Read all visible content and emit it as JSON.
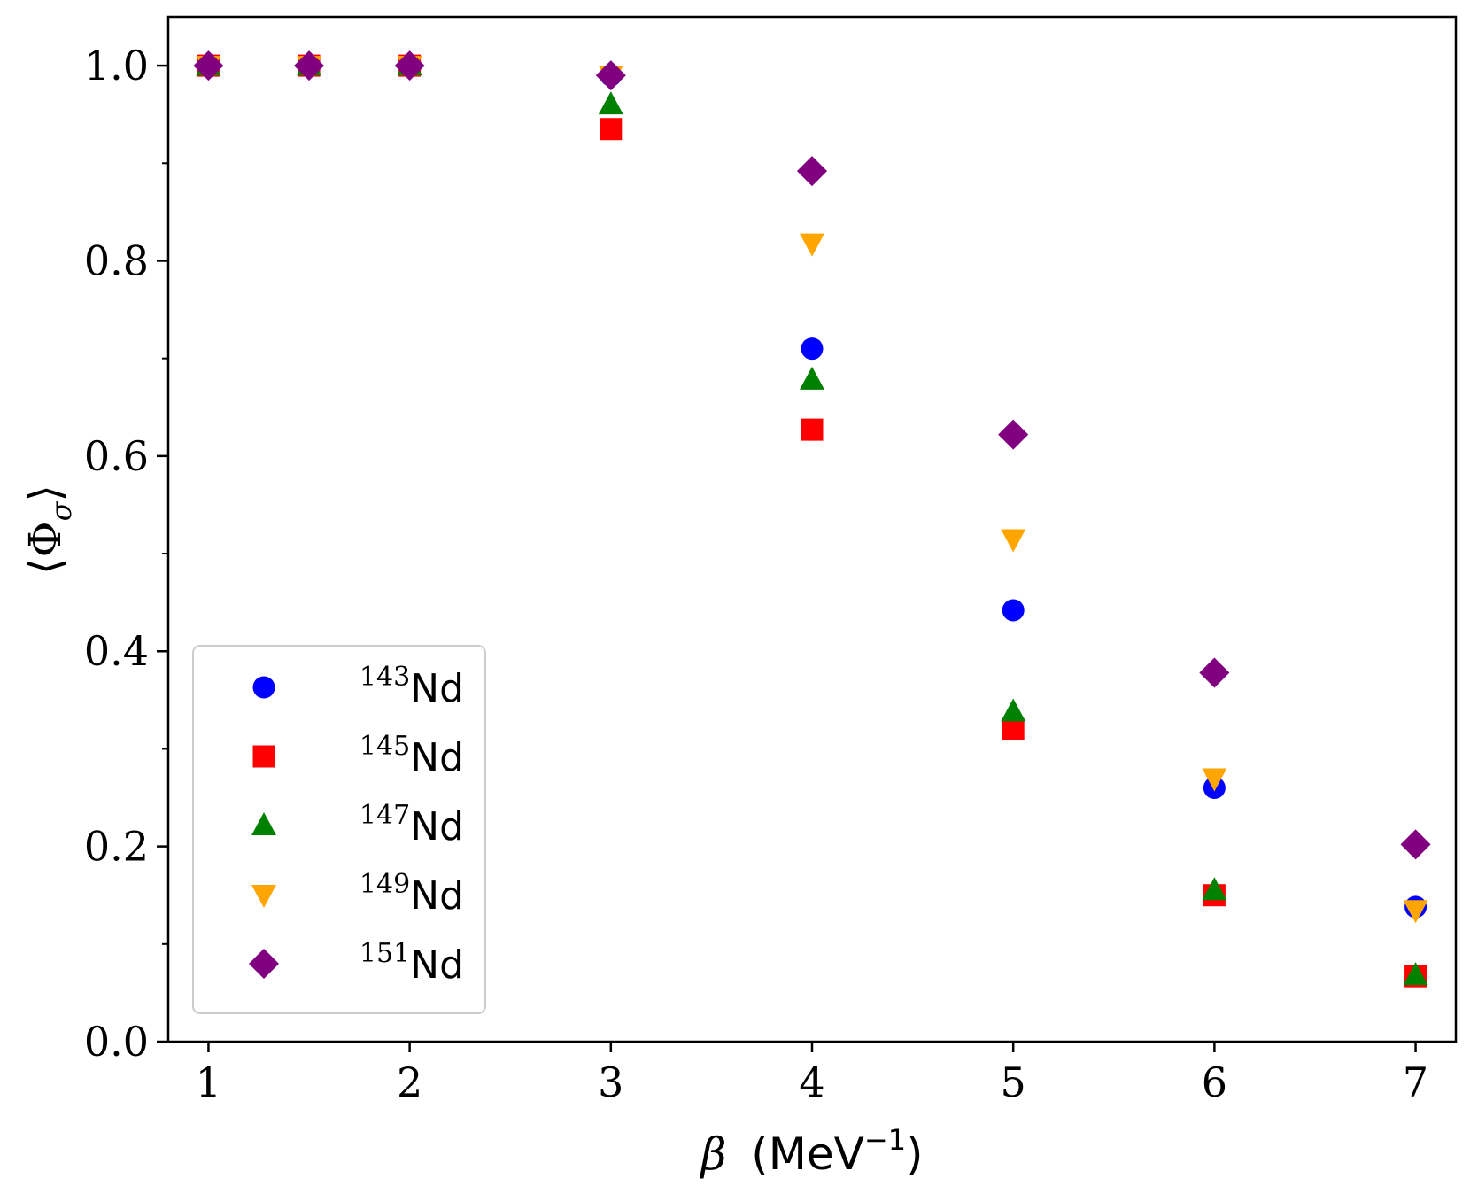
{
  "chart_data": {
    "type": "scatter",
    "title": "",
    "xlabel": {
      "symbol": "β",
      "unit_prefix": "(MeV",
      "unit_exp": "−1",
      "unit_suffix": ")"
    },
    "ylabel": {
      "open": "⟨",
      "symbol": "Φ",
      "sub": "σ",
      "close": "⟩"
    },
    "xlim": [
      0.8,
      7.2
    ],
    "ylim": [
      0.0,
      1.05
    ],
    "xticks": [
      1,
      2,
      3,
      4,
      5,
      6,
      7
    ],
    "xtick_labels": [
      "1",
      "2",
      "3",
      "4",
      "5",
      "6",
      "7"
    ],
    "yticks": [
      0.0,
      0.2,
      0.4,
      0.6,
      0.8,
      1.0
    ],
    "ytick_labels": [
      "0.0",
      "0.2",
      "0.4",
      "0.6",
      "0.8",
      "1.0"
    ],
    "yminor_ticks": [
      0.1,
      0.3,
      0.5,
      0.7,
      0.9
    ],
    "x": [
      1,
      1.5,
      2,
      3,
      4,
      5,
      6,
      7
    ],
    "legend_position": "lower-left",
    "grid": false,
    "series": [
      {
        "name": "143Nd",
        "mass": "143",
        "element": "Nd",
        "marker": "circle",
        "color": "#0000ff",
        "values": [
          1.0,
          1.0,
          1.0,
          0.99,
          0.71,
          0.442,
          0.26,
          0.138
        ]
      },
      {
        "name": "145Nd",
        "mass": "145",
        "element": "Nd",
        "marker": "square",
        "color": "#ff0000",
        "values": [
          1.0,
          1.0,
          1.0,
          0.935,
          0.627,
          0.32,
          0.15,
          0.067
        ]
      },
      {
        "name": "147Nd",
        "mass": "147",
        "element": "Nd",
        "marker": "triangle-up",
        "color": "#008000",
        "values": [
          1.0,
          1.0,
          1.0,
          0.96,
          0.678,
          0.338,
          0.155,
          0.068
        ]
      },
      {
        "name": "149Nd",
        "mass": "149",
        "element": "Nd",
        "marker": "triangle-down",
        "color": "#ffa500",
        "values": [
          1.0,
          1.0,
          1.0,
          0.99,
          0.818,
          0.515,
          0.27,
          0.135
        ]
      },
      {
        "name": "151Nd",
        "mass": "151",
        "element": "Nd",
        "marker": "diamond",
        "color": "#800080",
        "values": [
          1.0,
          1.0,
          1.0,
          0.99,
          0.892,
          0.622,
          0.378,
          0.202
        ]
      }
    ]
  }
}
